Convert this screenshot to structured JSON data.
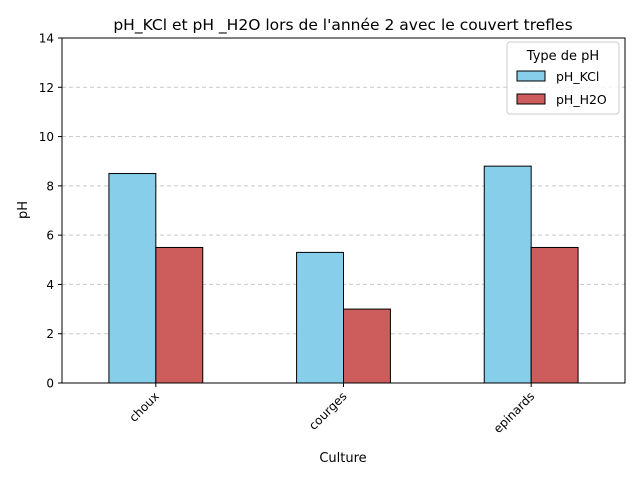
{
  "chart_data": {
    "type": "bar",
    "title": "pH_KCl et pH _H2O lors de l'année 2 avec le couvert trefles",
    "xlabel": "Culture",
    "ylabel": "pH",
    "categories": [
      "choux",
      "courges",
      "epinards"
    ],
    "series": [
      {
        "name": "pH_KCl",
        "values": [
          8.5,
          5.3,
          8.8
        ],
        "color": "#87CEEB"
      },
      {
        "name": "pH_H2O",
        "values": [
          5.5,
          3.0,
          5.5
        ],
        "color": "#CD5C5C"
      }
    ],
    "ylim": [
      0,
      14
    ],
    "yticks": [
      "0",
      "2",
      "4",
      "6",
      "8",
      "10",
      "12",
      "14"
    ],
    "grid": "y-dashed",
    "legend": {
      "title": "Type de pH",
      "placement": "top-right"
    }
  }
}
